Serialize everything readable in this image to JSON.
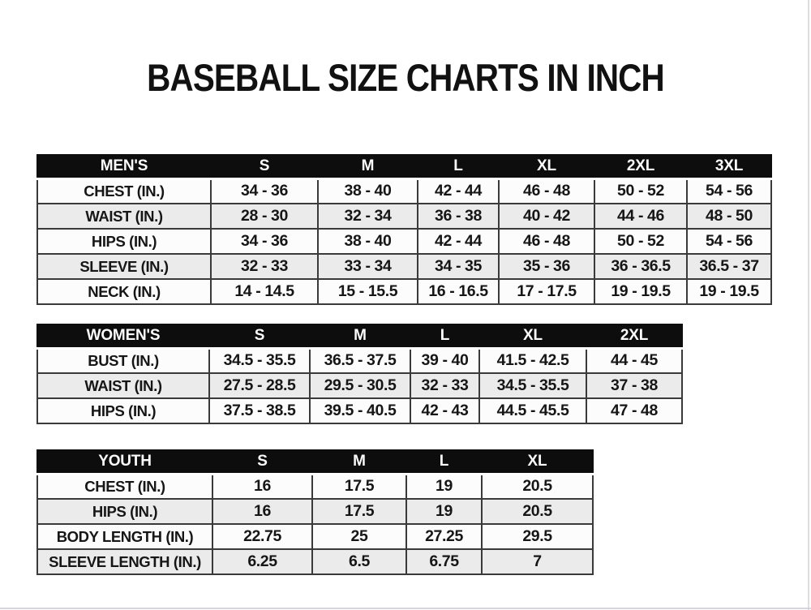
{
  "title": "BASEBALL SIZE CHARTS IN INCH",
  "tables": [
    {
      "name": "MEN'S",
      "sizes": [
        "S",
        "M",
        "L",
        "XL",
        "2XL",
        "3XL"
      ],
      "rows": [
        {
          "label": "CHEST (IN.)",
          "values": [
            "34 - 36",
            "38 - 40",
            "42 - 44",
            "46 - 48",
            "50 - 52",
            "54 - 56"
          ]
        },
        {
          "label": "WAIST (IN.)",
          "values": [
            "28 - 30",
            "32 - 34",
            "36 - 38",
            "40 - 42",
            "44 - 46",
            "48 - 50"
          ]
        },
        {
          "label": "HIPS (IN.)",
          "values": [
            "34 - 36",
            "38 - 40",
            "42 - 44",
            "46 - 48",
            "50 - 52",
            "54 - 56"
          ]
        },
        {
          "label": "SLEEVE (IN.)",
          "values": [
            "32 - 33",
            "33 - 34",
            "34 - 35",
            "35 - 36",
            "36 - 36.5",
            "36.5 - 37"
          ]
        },
        {
          "label": "NECK (IN.)",
          "values": [
            "14 - 14.5",
            "15 - 15.5",
            "16 - 16.5",
            "17 - 17.5",
            "19 - 19.5",
            "19 - 19.5"
          ]
        }
      ]
    },
    {
      "name": "WOMEN'S",
      "sizes": [
        "S",
        "M",
        "L",
        "XL",
        "2XL"
      ],
      "rows": [
        {
          "label": "BUST (IN.)",
          "values": [
            "34.5 - 35.5",
            "36.5 - 37.5",
            "39 - 40",
            "41.5 - 42.5",
            "44 - 45"
          ]
        },
        {
          "label": "WAIST (IN.)",
          "values": [
            "27.5 - 28.5",
            "29.5 - 30.5",
            "32 - 33",
            "34.5 - 35.5",
            "37 - 38"
          ]
        },
        {
          "label": "HIPS (IN.)",
          "values": [
            "37.5 - 38.5",
            "39.5 - 40.5",
            "42 - 43",
            "44.5 - 45.5",
            "47 - 48"
          ]
        }
      ]
    },
    {
      "name": "YOUTH",
      "sizes": [
        "S",
        "M",
        "L",
        "XL"
      ],
      "rows": [
        {
          "label": "CHEST (IN.)",
          "values": [
            "16",
            "17.5",
            "19",
            "20.5"
          ]
        },
        {
          "label": "HIPS (IN.)",
          "values": [
            "16",
            "17.5",
            "19",
            "20.5"
          ]
        },
        {
          "label": "BODY LENGTH (IN.)",
          "values": [
            "22.75",
            "25",
            "27.25",
            "29.5"
          ]
        },
        {
          "label": "SLEEVE LENGTH (IN.)",
          "values": [
            "6.25",
            "6.5",
            "6.75",
            "7"
          ]
        }
      ]
    }
  ],
  "colors": {
    "header_bg": "#0d0d0d",
    "header_text": "#fbfbfb",
    "row_alt_bg": "#ebebeb",
    "row_bg": "#fcfcfc",
    "border": "#3a3a3a",
    "text": "#161616"
  }
}
